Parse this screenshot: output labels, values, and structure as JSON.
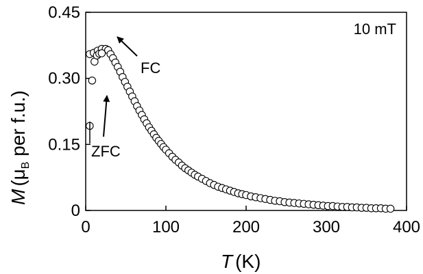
{
  "chart_data": {
    "type": "scatter",
    "x_label": {
      "symbol": "T",
      "unit": "(K)"
    },
    "y_label": {
      "symbol": "M",
      "open": "(μ",
      "sub": "B",
      "rest": " per f.u.)"
    },
    "xlim": [
      0,
      400
    ],
    "ylim": [
      0,
      0.45
    ],
    "x_ticks": [
      0,
      100,
      200,
      300,
      400
    ],
    "x_tick_labels": [
      "0",
      "100",
      "200",
      "300",
      "400"
    ],
    "y_ticks": [
      0,
      0.15,
      0.3,
      0.45
    ],
    "y_tick_labels": [
      "0",
      "0.15",
      "0.30",
      "0.45"
    ],
    "field_annotation": "10 mT",
    "annotations": {
      "fc": "FC",
      "zfc": "ZFC"
    },
    "marker_style": "open-circle",
    "series": [
      {
        "x": [
          5,
          10,
          15,
          20,
          25,
          28,
          31,
          34,
          37,
          40,
          43,
          46,
          49,
          52,
          55,
          58,
          61,
          64,
          67,
          70,
          73,
          76,
          79,
          82,
          85,
          88,
          91,
          94,
          97,
          100,
          104,
          108,
          112,
          116,
          120,
          124,
          128,
          132,
          136,
          140,
          145,
          150,
          155,
          160,
          165,
          170,
          175,
          180,
          185,
          190,
          195,
          200,
          206,
          212,
          218,
          224,
          230,
          236,
          242,
          248,
          254,
          260,
          266,
          272,
          278,
          284,
          290,
          296,
          302,
          308,
          314,
          320,
          326,
          332,
          338,
          344,
          350,
          356,
          362,
          368,
          374,
          380
        ],
        "y": [
          0.355,
          0.358,
          0.363,
          0.367,
          0.367,
          0.364,
          0.355,
          0.346,
          0.336,
          0.326,
          0.315,
          0.303,
          0.292,
          0.281,
          0.27,
          0.259,
          0.248,
          0.237,
          0.227,
          0.217,
          0.207,
          0.198,
          0.189,
          0.181,
          0.173,
          0.165,
          0.158,
          0.151,
          0.144,
          0.138,
          0.13,
          0.122,
          0.115,
          0.109,
          0.102,
          0.096,
          0.091,
          0.086,
          0.081,
          0.077,
          0.072,
          0.067,
          0.062,
          0.058,
          0.054,
          0.051,
          0.048,
          0.045,
          0.042,
          0.039,
          0.037,
          0.035,
          0.032,
          0.03,
          0.028,
          0.026,
          0.024,
          0.022,
          0.021,
          0.019,
          0.018,
          0.017,
          0.016,
          0.015,
          0.014,
          0.013,
          0.012,
          0.011,
          0.01,
          0.01,
          0.009,
          0.008,
          0.008,
          0.007,
          0.007,
          0.006,
          0.006,
          0.005,
          0.005,
          0.005,
          0.004,
          0.004
        ]
      },
      {
        "x": [
          5,
          8,
          11,
          14,
          17,
          20
        ],
        "y": [
          0.192,
          0.295,
          0.338,
          0.352,
          0.356,
          0.357
        ]
      }
    ]
  }
}
